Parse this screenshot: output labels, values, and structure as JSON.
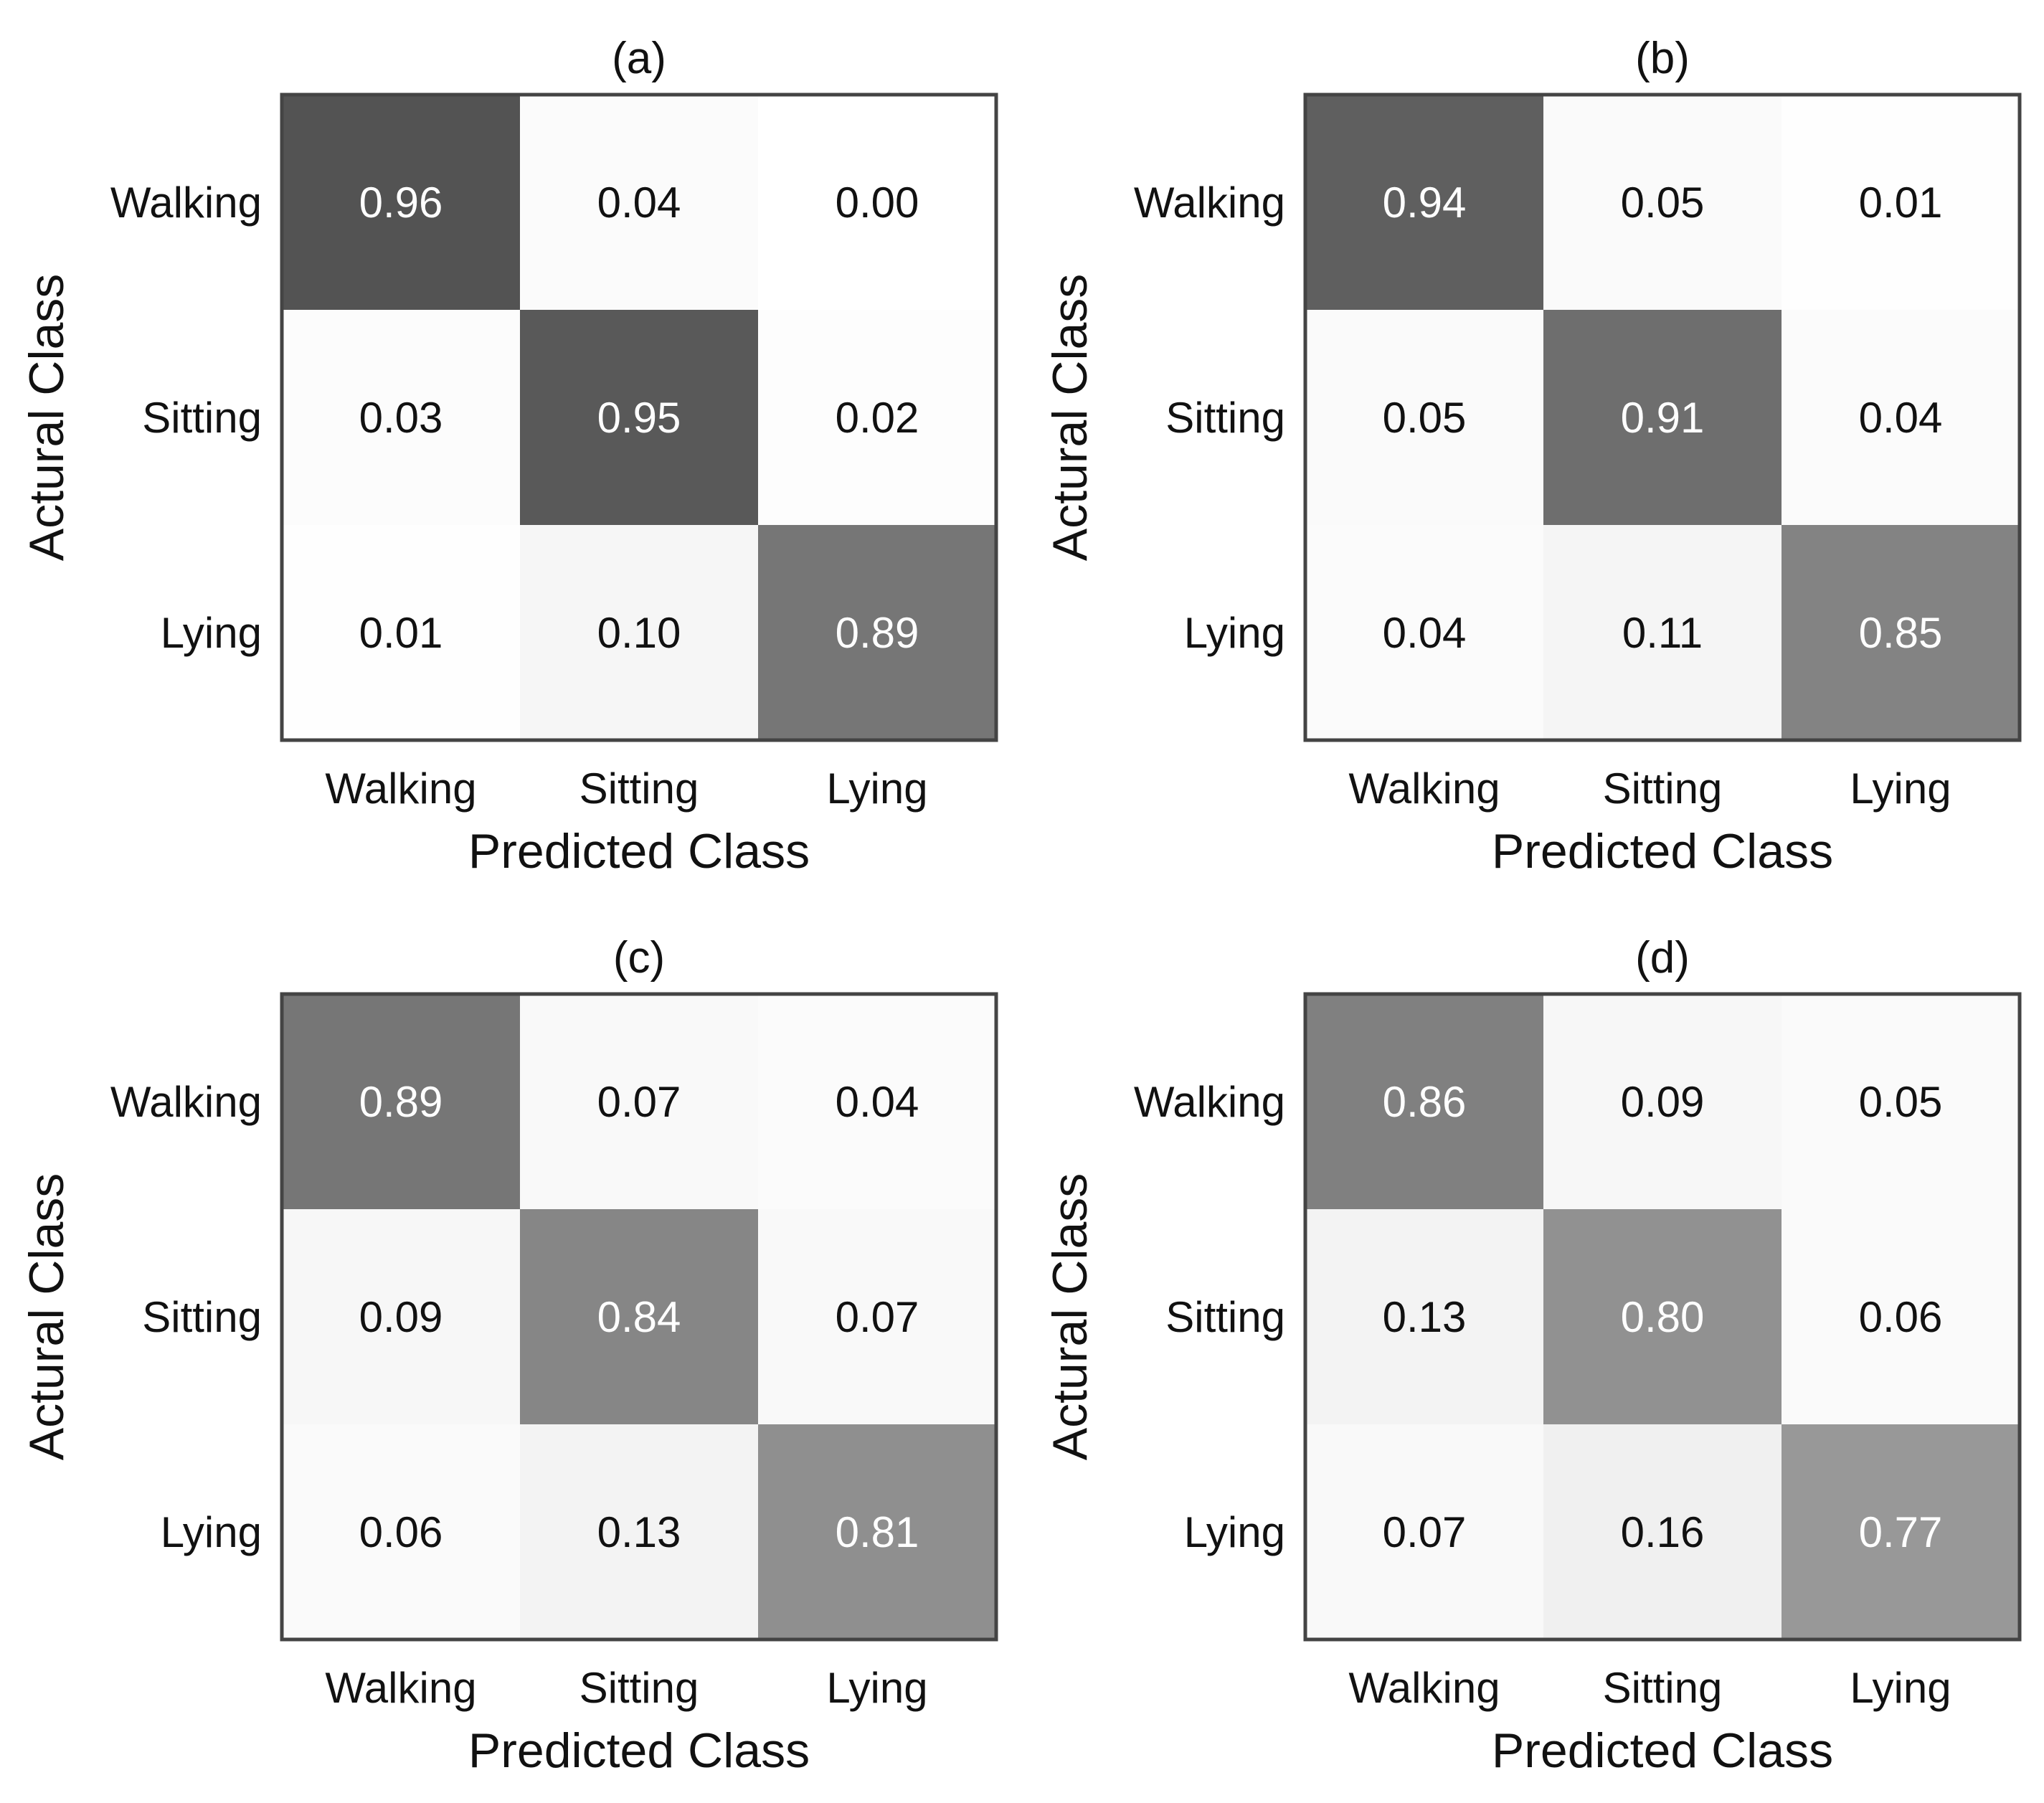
{
  "figure": {
    "panels": [
      "(a)",
      "(b)",
      "(c)",
      "(d)"
    ]
  },
  "chart_data": [
    {
      "type": "heatmap",
      "title": "(a)",
      "xlabel": "Predicted Class",
      "ylabel": "Actural Class",
      "x_categories": [
        "Walking",
        "Sitting",
        "Lying"
      ],
      "y_categories": [
        "Walking",
        "Sitting",
        "Lying"
      ],
      "values": [
        [
          0.96,
          0.04,
          0.0
        ],
        [
          0.03,
          0.95,
          0.02
        ],
        [
          0.01,
          0.1,
          0.89
        ]
      ],
      "value_labels": [
        [
          "0.96",
          "0.04",
          "0.00"
        ],
        [
          "0.03",
          "0.95",
          "0.02"
        ],
        [
          "0.01",
          "0.10",
          "0.89"
        ]
      ],
      "colormap": "grayscale (white = 0, black = 1)"
    },
    {
      "type": "heatmap",
      "title": "(b)",
      "xlabel": "Predicted Class",
      "ylabel": "Actural Class",
      "x_categories": [
        "Walking",
        "Sitting",
        "Lying"
      ],
      "y_categories": [
        "Walking",
        "Sitting",
        "Lying"
      ],
      "values": [
        [
          0.94,
          0.05,
          0.01
        ],
        [
          0.05,
          0.91,
          0.04
        ],
        [
          0.04,
          0.11,
          0.85
        ]
      ],
      "value_labels": [
        [
          "0.94",
          "0.05",
          "0.01"
        ],
        [
          "0.05",
          "0.91",
          "0.04"
        ],
        [
          "0.04",
          "0.11",
          "0.85"
        ]
      ],
      "colormap": "grayscale (white = 0, black = 1)"
    },
    {
      "type": "heatmap",
      "title": "(c)",
      "xlabel": "Predicted Class",
      "ylabel": "Actural Class",
      "x_categories": [
        "Walking",
        "Sitting",
        "Lying"
      ],
      "y_categories": [
        "Walking",
        "Sitting",
        "Lying"
      ],
      "values": [
        [
          0.89,
          0.07,
          0.04
        ],
        [
          0.09,
          0.84,
          0.07
        ],
        [
          0.06,
          0.13,
          0.81
        ]
      ],
      "value_labels": [
        [
          "0.89",
          "0.07",
          "0.04"
        ],
        [
          "0.09",
          "0.84",
          "0.07"
        ],
        [
          "0.06",
          "0.13",
          "0.81"
        ]
      ],
      "colormap": "grayscale (white = 0, black = 1)"
    },
    {
      "type": "heatmap",
      "title": "(d)",
      "xlabel": "Predicted Class",
      "ylabel": "Actural Class",
      "x_categories": [
        "Walking",
        "Sitting",
        "Lying"
      ],
      "y_categories": [
        "Walking",
        "Sitting",
        "Lying"
      ],
      "values": [
        [
          0.86,
          0.09,
          0.05
        ],
        [
          0.13,
          0.8,
          0.06
        ],
        [
          0.07,
          0.16,
          0.77
        ]
      ],
      "value_labels": [
        [
          "0.86",
          "0.09",
          "0.05"
        ],
        [
          "0.13",
          "0.80",
          "0.06"
        ],
        [
          "0.07",
          "0.16",
          "0.77"
        ]
      ],
      "colormap": "grayscale (white = 0, black = 1)"
    }
  ]
}
